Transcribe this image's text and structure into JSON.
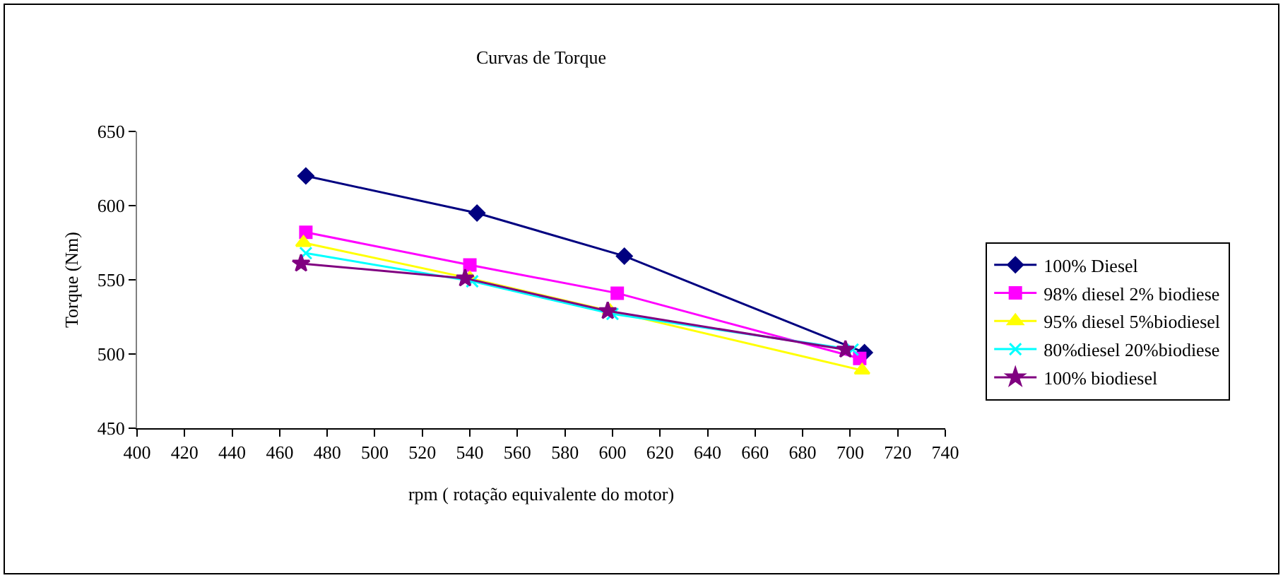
{
  "chart_data": {
    "type": "line",
    "title": "Curvas de Torque",
    "xlabel": "rpm ( rotação equivalente do motor)",
    "ylabel": "Torque (Nm)",
    "xlim": [
      400,
      740
    ],
    "xticks": [
      400,
      420,
      440,
      460,
      480,
      500,
      520,
      540,
      560,
      580,
      600,
      620,
      640,
      660,
      680,
      700,
      720,
      740
    ],
    "ylim": [
      450,
      650
    ],
    "yticks": [
      450,
      500,
      550,
      600,
      650
    ],
    "grid": false,
    "legend": "right",
    "line_style": "solid",
    "series": [
      {
        "name": "100% Diesel",
        "color": "#000080",
        "marker": "diamond",
        "x": [
          471,
          543,
          605,
          706
        ],
        "values": [
          620,
          595,
          566,
          501
        ]
      },
      {
        "name": "98% diesel 2% biodiese",
        "color": "#ff00ff",
        "marker": "square",
        "x": [
          471,
          540,
          602,
          704
        ],
        "values": [
          582,
          560,
          541,
          497
        ]
      },
      {
        "name": "95% diesel 5%biodiesel",
        "color": "#ffff00",
        "marker": "triangle",
        "x": [
          470,
          540,
          599,
          705
        ],
        "values": [
          575,
          551,
          529,
          489
        ]
      },
      {
        "name": "80%diesel 20%biodiese",
        "color": "#00ffff",
        "marker": "cross",
        "x": [
          471,
          541,
          600,
          701
        ],
        "values": [
          568,
          549,
          527,
          503
        ]
      },
      {
        "name": "100% biodiesel",
        "color": "#800080",
        "marker": "star",
        "x": [
          469,
          538,
          598,
          698
        ],
        "values": [
          561,
          551,
          529,
          503
        ]
      }
    ]
  }
}
